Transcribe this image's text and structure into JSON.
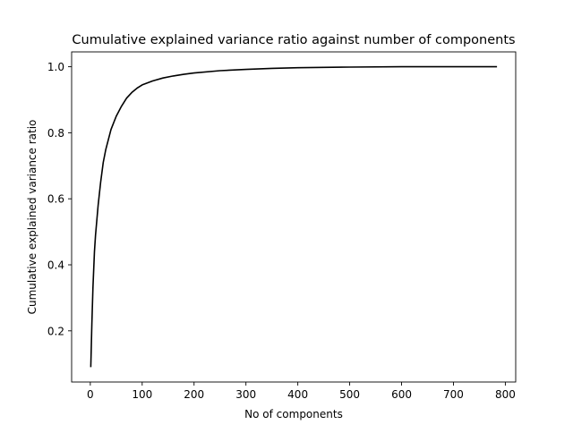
{
  "chart_data": {
    "type": "line",
    "title": "Cumulative explained variance ratio against number of components",
    "xlabel": "No of components",
    "ylabel": "Cumulative explained variance ratio",
    "xlim": [
      -36,
      820
    ],
    "ylim": [
      0.045,
      1.045
    ],
    "xticks": [
      0,
      100,
      200,
      300,
      400,
      500,
      600,
      700,
      800
    ],
    "yticks": [
      0.2,
      0.4,
      0.6,
      0.8,
      1.0
    ],
    "grid": false,
    "line_color": "#000000",
    "series": [
      {
        "x": [
          1,
          3,
          5,
          8,
          10,
          15,
          20,
          25,
          30,
          35,
          40,
          50,
          60,
          70,
          80,
          90,
          100,
          120,
          140,
          160,
          180,
          200,
          250,
          300,
          350,
          400,
          450,
          500,
          600,
          700,
          784
        ],
        "y": [
          0.09,
          0.22,
          0.33,
          0.44,
          0.49,
          0.58,
          0.65,
          0.71,
          0.75,
          0.78,
          0.81,
          0.85,
          0.88,
          0.905,
          0.922,
          0.935,
          0.945,
          0.957,
          0.966,
          0.972,
          0.977,
          0.981,
          0.988,
          0.992,
          0.995,
          0.997,
          0.998,
          0.999,
          1.0,
          1.0,
          1.0
        ]
      }
    ]
  }
}
